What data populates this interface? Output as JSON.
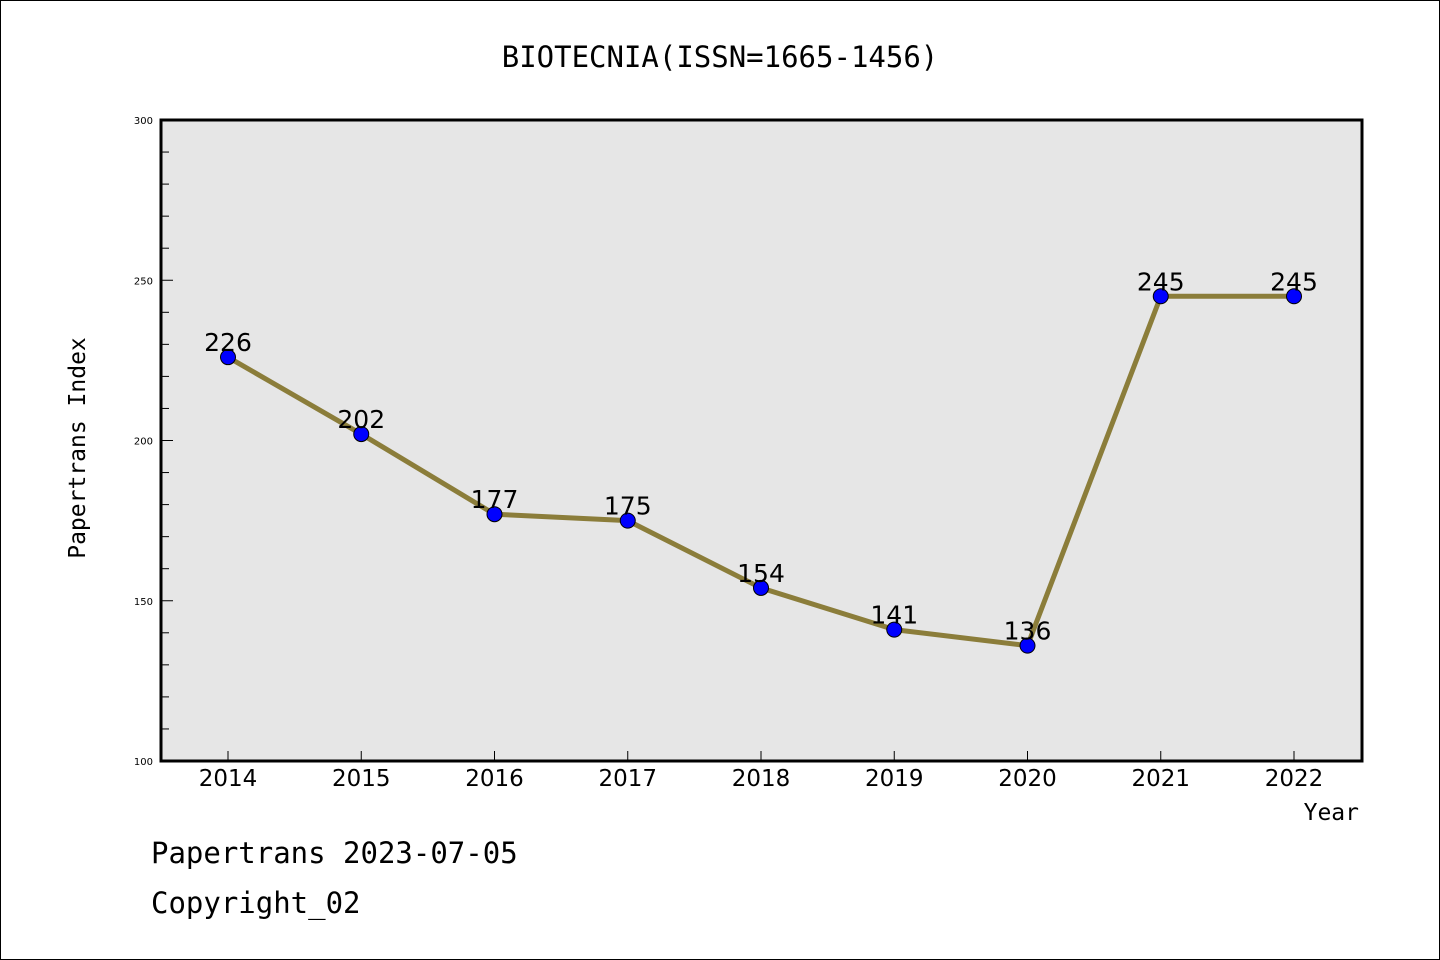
{
  "chart_data": {
    "type": "line",
    "title": "BIOTECNIA(ISSN=1665-1456)",
    "xlabel": "Year",
    "ylabel": "Papertrans Index",
    "categories": [
      "2014",
      "2015",
      "2016",
      "2017",
      "2018",
      "2019",
      "2020",
      "2021",
      "2022"
    ],
    "series": [
      {
        "values": [
          226,
          202,
          177,
          175,
          154,
          141,
          136,
          245,
          245
        ]
      }
    ],
    "ylim": [
      100,
      300
    ],
    "yticks": [
      "100",
      "150",
      "200",
      "250",
      "300"
    ],
    "grid": false,
    "colors": {
      "line": "#8b7d3a",
      "marker": "#0000ff",
      "plot_background": "#e6e6e6"
    }
  },
  "footer": {
    "date_line": "Papertrans 2023-07-05",
    "copyright": "Copyright_02"
  }
}
